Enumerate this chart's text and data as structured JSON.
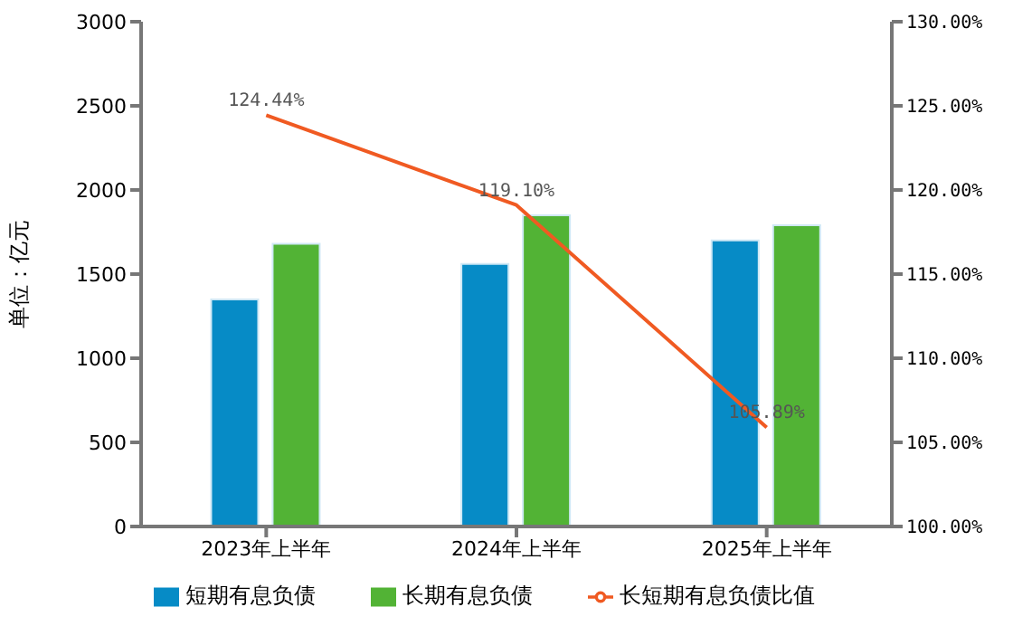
{
  "chart_data": {
    "type": "bar",
    "categories": [
      "2023年上半年",
      "2024年上半年",
      "2025年上半年"
    ],
    "ylabel": "单位：亿元",
    "series": [
      {
        "name": "短期有息负债",
        "color": "#068bc6",
        "values": [
          1350,
          1560,
          1700
        ]
      },
      {
        "name": "长期有息负债",
        "color": "#52b335",
        "values": [
          1680,
          1850,
          1790
        ]
      },
      {
        "name": "长短期有息负债比值",
        "type": "line",
        "axis": "y2",
        "color": "#f05a22",
        "values": [
          124.44,
          119.1,
          105.89
        ],
        "value_labels": [
          "124.44%",
          "119.10%",
          "105.89%"
        ]
      }
    ],
    "ylim": [
      0,
      3000
    ],
    "yticks": [
      0,
      500,
      1000,
      1500,
      2000,
      2500,
      3000
    ],
    "y2lim": [
      100,
      130
    ],
    "y2ticks": [
      {
        "value": 100,
        "label": "100.00%"
      },
      {
        "value": 105,
        "label": "105.00%"
      },
      {
        "value": 110,
        "label": "110.00%"
      },
      {
        "value": 115,
        "label": "115.00%"
      },
      {
        "value": 120,
        "label": "120.00%"
      },
      {
        "value": 125,
        "label": "125.00%"
      },
      {
        "value": 130,
        "label": "130.00%"
      }
    ],
    "grid": false,
    "legend": "bottom",
    "marker": "none",
    "line_style": "solid"
  }
}
